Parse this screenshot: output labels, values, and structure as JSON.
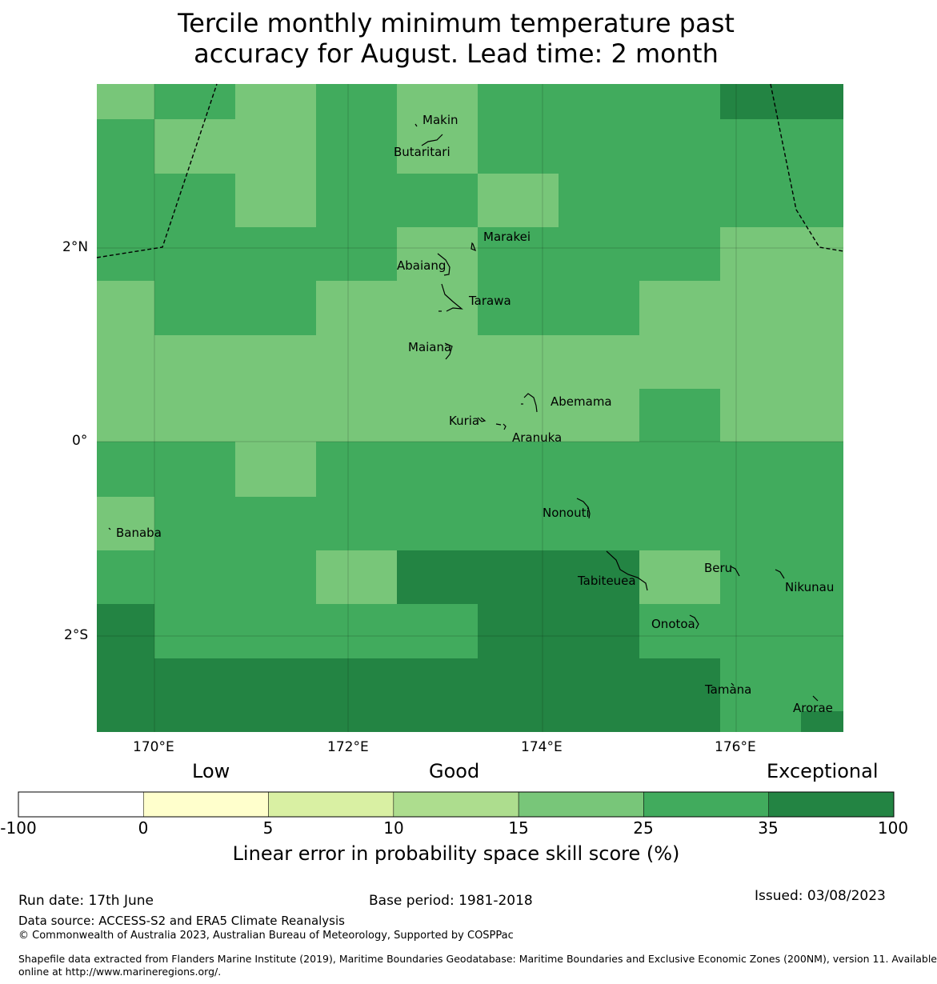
{
  "title": {
    "line1": "Tercile monthly minimum temperature past",
    "line2": "accuracy for August. Lead time: 2 month"
  },
  "map": {
    "lat_labels": [
      "2°N",
      "0°",
      "2°S"
    ],
    "lon_labels": [
      "170°E",
      "172°E",
      "174°E",
      "176°E"
    ],
    "grid_colors": {
      "a": "#78c679",
      "b": "#41ab5d",
      "c": "#238443"
    },
    "skill_grid": [
      [
        "a",
        "b",
        "a",
        "b",
        "a",
        "b",
        "b",
        "b",
        "c"
      ],
      [
        "b",
        "a",
        "a",
        "b",
        "a",
        "b",
        "b",
        "b",
        "b"
      ],
      [
        "b",
        "b",
        "a",
        "b",
        "b",
        "a",
        "b",
        "b",
        "b"
      ],
      [
        "b",
        "b",
        "b",
        "b",
        "a",
        "b",
        "b",
        "b",
        "a"
      ],
      [
        "a",
        "b",
        "b",
        "a",
        "a",
        "b",
        "b",
        "a",
        "a"
      ],
      [
        "a",
        "a",
        "a",
        "a",
        "a",
        "a",
        "a",
        "a",
        "a"
      ],
      [
        "a",
        "a",
        "a",
        "a",
        "a",
        "a",
        "a",
        "b",
        "a"
      ],
      [
        "b",
        "b",
        "a",
        "b",
        "b",
        "b",
        "b",
        "b",
        "b"
      ],
      [
        "a",
        "b",
        "b",
        "b",
        "b",
        "b",
        "b",
        "b",
        "b"
      ],
      [
        "b",
        "b",
        "b",
        "a",
        "c",
        "c",
        "c",
        "a",
        "b"
      ],
      [
        "c",
        "b",
        "b",
        "b",
        "b",
        "c",
        "c",
        "b",
        "b"
      ],
      [
        "c",
        "c",
        "c",
        "c",
        "c",
        "c",
        "c",
        "c",
        "b"
      ]
    ],
    "places": [
      "Makin",
      "Butaritari",
      "Marakei",
      "Abaiang",
      "Tarawa",
      "Maiana",
      "Abemama",
      "Kuria",
      "Aranuka",
      "Nonouti",
      "Banaba",
      "Tabiteuea",
      "Beru",
      "Nikunau",
      "Onotoa",
      "Tamana",
      "Arorae"
    ]
  },
  "colorbar": {
    "categories": [
      "Low",
      "Good",
      "Exceptional"
    ],
    "bins": [
      {
        "from": "-100",
        "to": "0",
        "color": "#ffffff"
      },
      {
        "from": "0",
        "to": "5",
        "color": "#ffffcc"
      },
      {
        "from": "5",
        "to": "10",
        "color": "#d9f0a3"
      },
      {
        "from": "10",
        "to": "15",
        "color": "#addd8e"
      },
      {
        "from": "15",
        "to": "25",
        "color": "#78c679"
      },
      {
        "from": "25",
        "to": "35",
        "color": "#41ab5d"
      },
      {
        "from": "35",
        "to": "100",
        "color": "#238443"
      }
    ],
    "ticks": [
      "-100",
      "0",
      "5",
      "10",
      "15",
      "25",
      "35",
      "100"
    ],
    "label": "Linear error in probability space skill score (%)"
  },
  "footer": {
    "run_date": "Run date: 17th June",
    "base_period": "Base period: 1981-2018",
    "issued": "Issued: 03/08/2023",
    "data_source": "Data source: ACCESS-S2 and ERA5 Climate Reanalysis",
    "copyright": "© Commonwealth of Australia 2023, Australian Bureau of Meteorology, Supported by COSPPac",
    "shapefile_line1": "Shapefile data extracted from Flanders Marine Institute (2019), Maritime Boundaries Geodatabase: Maritime Boundaries and Exclusive Economic Zones (200NM), version 11. Available",
    "shapefile_line2": "online at http://www.marineregions.org/."
  }
}
